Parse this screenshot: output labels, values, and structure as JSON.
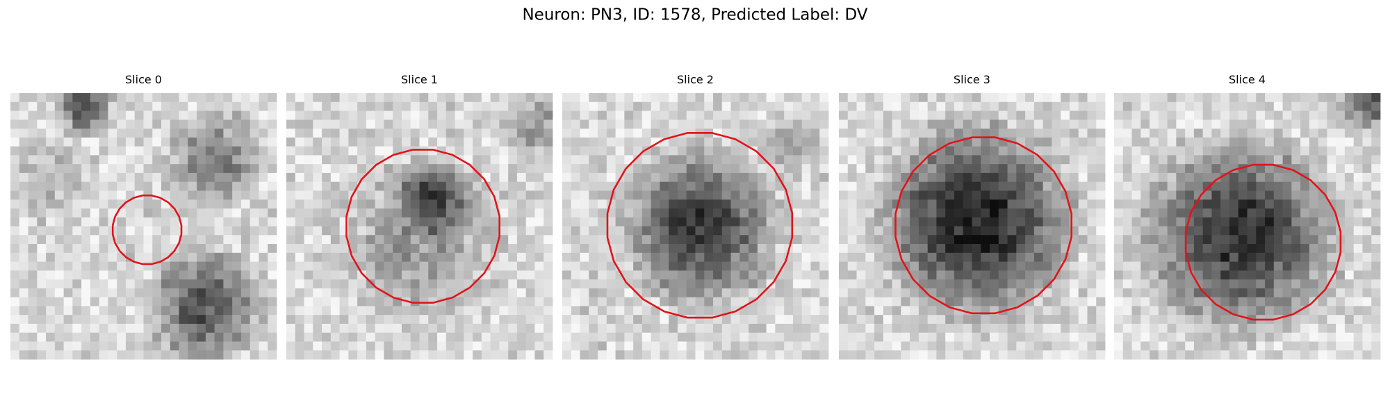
{
  "title": "Neuron: PN3, ID: 1578, Predicted Label: DV",
  "panels": [
    {
      "title": "Slice 0"
    },
    {
      "title": "Slice 1"
    },
    {
      "title": "Slice 2"
    },
    {
      "title": "Slice 3"
    },
    {
      "title": "Slice 4"
    }
  ]
}
